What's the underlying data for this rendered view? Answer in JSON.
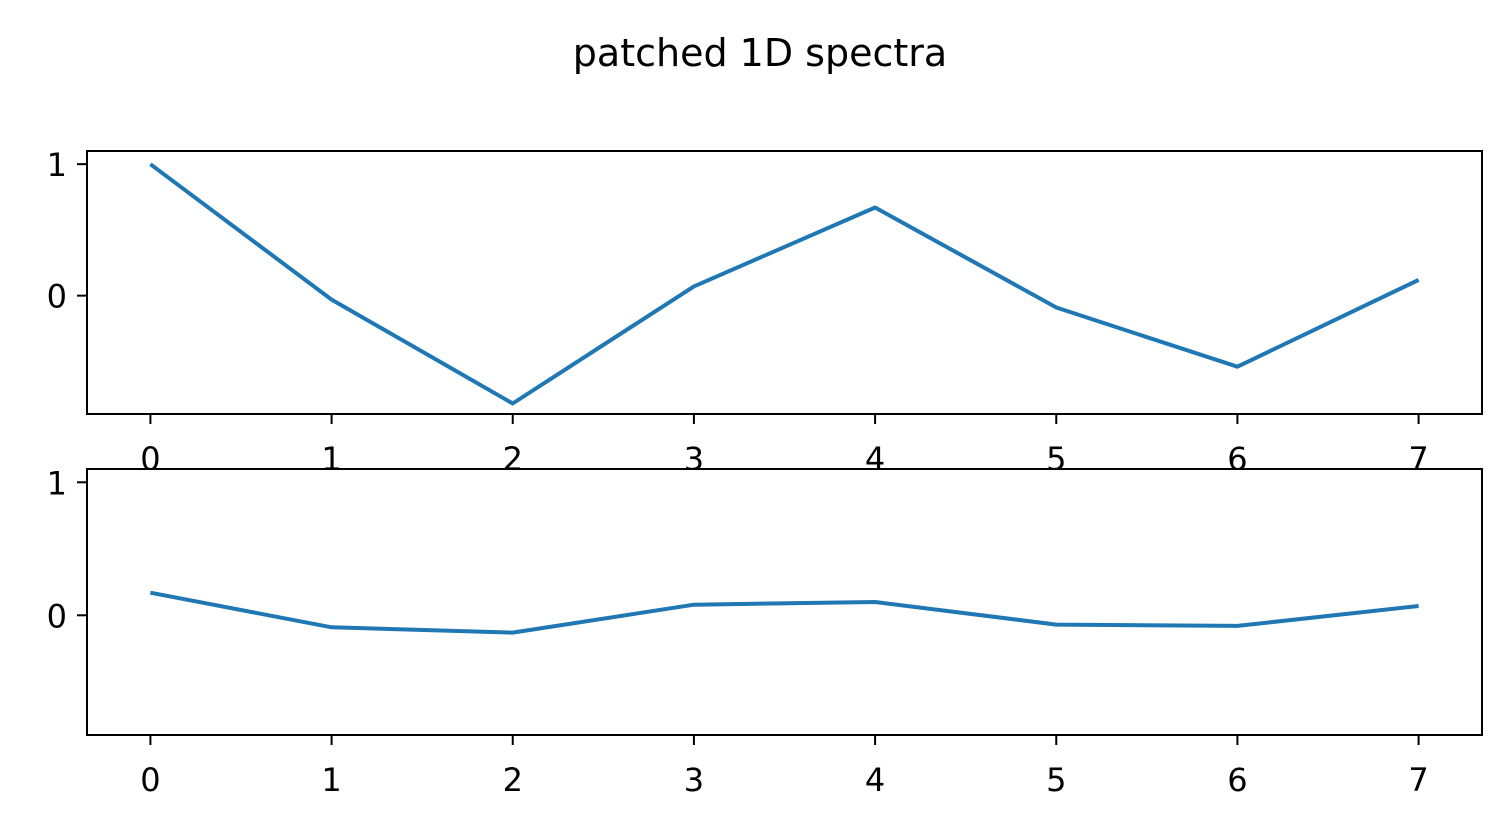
{
  "figure": {
    "title": "patched 1D spectra",
    "background": "#ffffff",
    "line_color": "#1f77b4"
  },
  "chart_data": [
    {
      "type": "line",
      "title": "",
      "xlabel": "",
      "ylabel": "",
      "xlim": [
        -0.35,
        7.35
      ],
      "ylim": [
        -0.9,
        1.1
      ],
      "x_ticks": [
        0,
        1,
        2,
        3,
        4,
        5,
        6,
        7
      ],
      "x_tick_labels": [
        "0",
        "1",
        "2",
        "3",
        "4",
        "5",
        "6",
        "7"
      ],
      "y_ticks": [
        0,
        1
      ],
      "y_tick_labels": [
        "0",
        "1"
      ],
      "grid": false,
      "series": [
        {
          "x": [
            0,
            1,
            2,
            3,
            4,
            5,
            6,
            7
          ],
          "y": [
            1.0,
            -0.03,
            -0.82,
            0.07,
            0.67,
            -0.09,
            -0.54,
            0.12
          ],
          "color": "#1f77b4"
        }
      ]
    },
    {
      "type": "line",
      "title": "",
      "xlabel": "",
      "ylabel": "",
      "xlim": [
        -0.35,
        7.35
      ],
      "ylim": [
        -0.9,
        1.1
      ],
      "x_ticks": [
        0,
        1,
        2,
        3,
        4,
        5,
        6,
        7
      ],
      "x_tick_labels": [
        "0",
        "1",
        "2",
        "3",
        "4",
        "5",
        "6",
        "7"
      ],
      "y_ticks": [
        0,
        1
      ],
      "y_tick_labels": [
        "0",
        "1"
      ],
      "grid": false,
      "series": [
        {
          "x": [
            0,
            1,
            2,
            3,
            4,
            5,
            6,
            7
          ],
          "y": [
            0.17,
            -0.09,
            -0.13,
            0.08,
            0.1,
            -0.07,
            -0.08,
            0.07
          ],
          "color": "#1f77b4"
        }
      ]
    }
  ]
}
